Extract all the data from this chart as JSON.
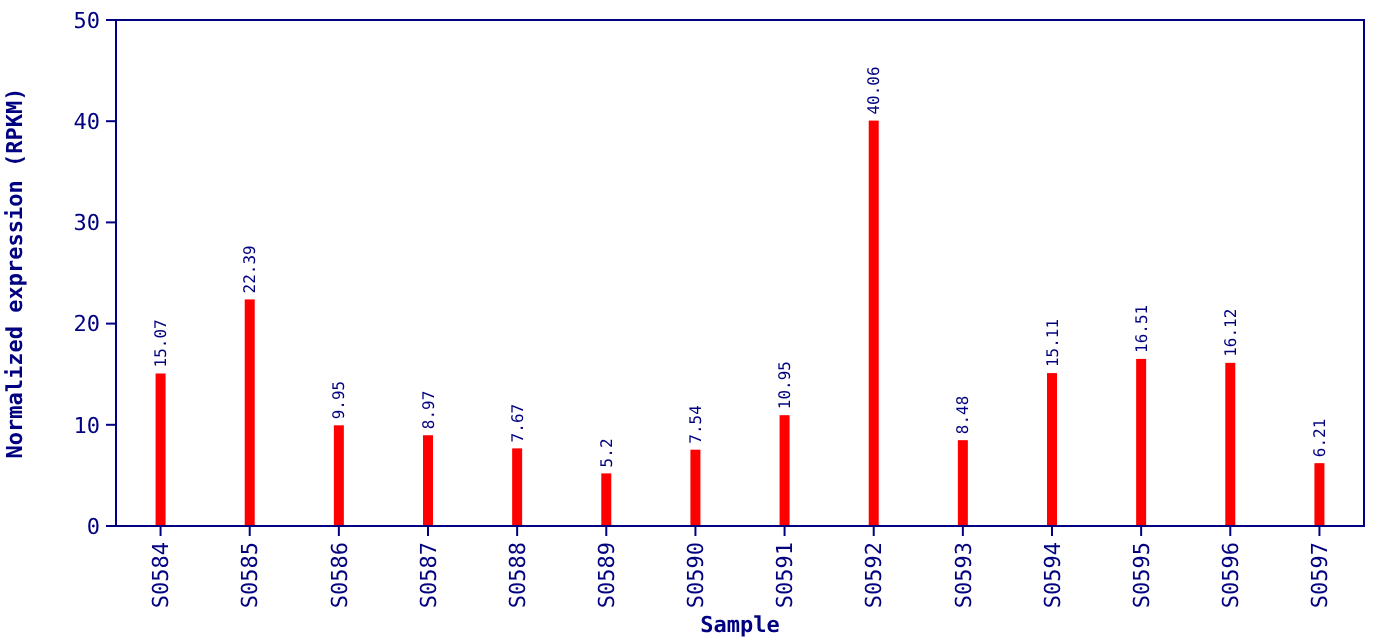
{
  "chart_data": {
    "type": "bar",
    "xlabel": "Sample",
    "ylabel": "Normalized expression (RPKM)",
    "categories": [
      "S0584",
      "S0585",
      "S0586",
      "S0587",
      "S0588",
      "S0589",
      "S0590",
      "S0591",
      "S0592",
      "S0593",
      "S0594",
      "S0595",
      "S0596",
      "S0597"
    ],
    "values": [
      15.07,
      22.39,
      9.95,
      8.97,
      7.67,
      5.2,
      7.54,
      10.95,
      40.06,
      8.48,
      15.11,
      16.51,
      16.12,
      6.21
    ],
    "color": "#ff0000",
    "ylim": [
      0,
      50
    ],
    "yticks": [
      0,
      10,
      20,
      30,
      40,
      50
    ],
    "data_labels": true
  }
}
